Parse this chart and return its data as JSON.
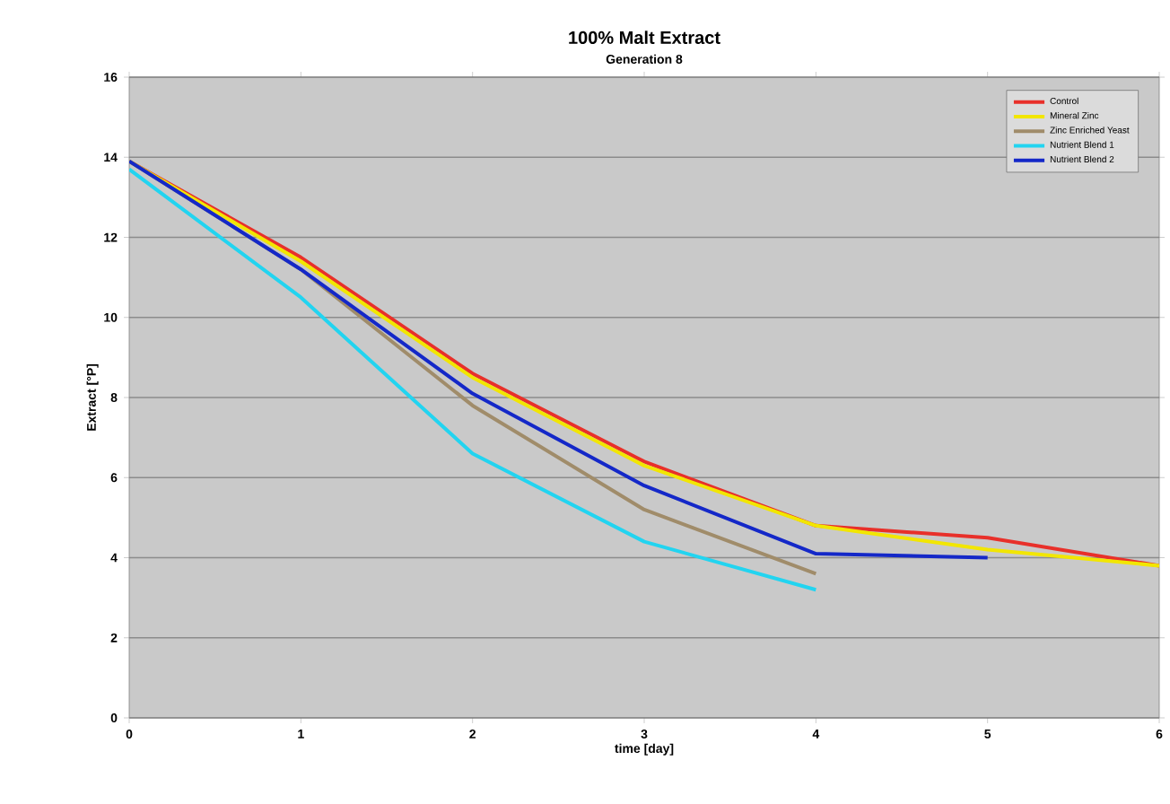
{
  "chart_data": {
    "type": "line",
    "title": "100% Malt Extract",
    "subtitle": "Generation 8",
    "xlabel": "time [day]",
    "ylabel": "Extract [°P]",
    "xlim": [
      0,
      6
    ],
    "xticks": [
      0,
      1,
      2,
      3,
      4,
      5,
      6
    ],
    "ylim": [
      0,
      16
    ],
    "yticks": [
      0,
      2,
      4,
      6,
      8,
      10,
      12,
      14,
      16
    ],
    "grid": "y",
    "legend": "top right",
    "marker": "none",
    "line_style": "solid",
    "series": [
      {
        "name": "Control",
        "color": "#e8302a",
        "x": [
          0,
          1,
          2,
          3,
          4,
          5,
          6
        ],
        "values": [
          13.9,
          11.5,
          8.6,
          6.4,
          4.8,
          4.5,
          3.8
        ]
      },
      {
        "name": "Mineral Zinc",
        "color": "#f2e600",
        "x": [
          0,
          1,
          2,
          3,
          4,
          5,
          6
        ],
        "values": [
          13.9,
          11.4,
          8.5,
          6.3,
          4.8,
          4.2,
          3.8
        ]
      },
      {
        "name": "Zinc Enriched Yeast",
        "color": "#a08c6a",
        "x": [
          0,
          1,
          2,
          3,
          4
        ],
        "values": [
          13.9,
          11.2,
          7.8,
          5.2,
          3.6
        ]
      },
      {
        "name": "Nutrient Blend 1",
        "color": "#22d4f0",
        "x": [
          0,
          1,
          2,
          3,
          4
        ],
        "values": [
          13.7,
          10.5,
          6.6,
          4.4,
          3.2
        ]
      },
      {
        "name": "Nutrient Blend 2",
        "color": "#1428c8",
        "x": [
          0,
          1,
          2,
          3,
          4,
          5
        ],
        "values": [
          13.9,
          11.2,
          8.1,
          5.8,
          4.1,
          4.0
        ]
      }
    ]
  }
}
